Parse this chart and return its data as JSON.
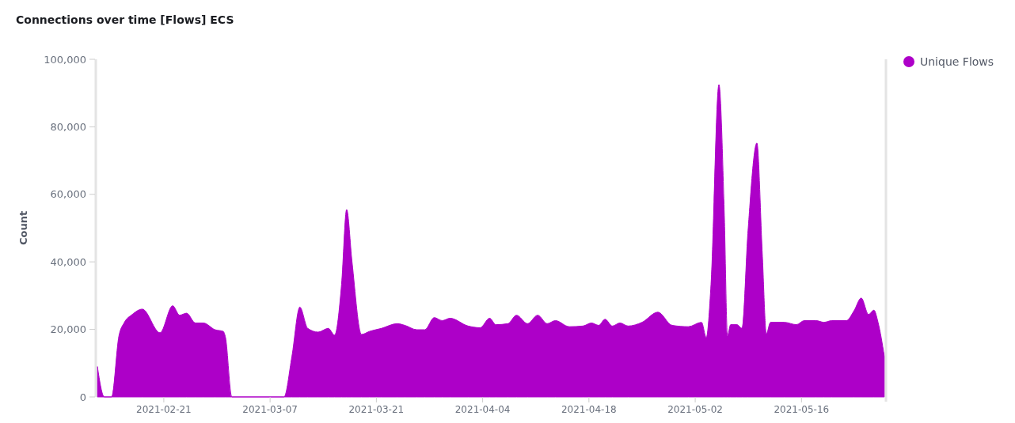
{
  "chart_data": {
    "type": "area",
    "title": "Connections over time [Flows] ECS",
    "ylabel": "Count",
    "xlim": [
      "2021-02-12T06:00",
      "2021-05-26T22:00"
    ],
    "xticks": [
      "2021-02-21",
      "2021-03-07",
      "2021-03-21",
      "2021-04-04",
      "2021-04-18",
      "2021-05-02",
      "2021-05-16"
    ],
    "ylim": [
      0,
      100000
    ],
    "yticks": [
      0,
      {
        "value": 20000,
        "label": "20,000"
      },
      {
        "value": 40000,
        "label": "40,000"
      },
      {
        "value": 60000,
        "label": "60,000"
      },
      {
        "value": 80000,
        "label": "80,000"
      },
      {
        "value": 100000,
        "label": "100,000"
      }
    ],
    "grid": false,
    "legend": "top right",
    "series": [
      {
        "name": "Unique Flows",
        "color": "#ad00c8",
        "x": [
          "2021-02-12T06:00",
          "2021-02-13T04:00",
          "2021-02-14T03:00",
          "2021-02-15T02:00",
          "2021-02-15T19:00",
          "2021-02-16T20:00",
          "2021-02-18T04:00",
          "2021-02-20T12:00",
          "2021-02-22T04:00",
          "2021-02-23T02:00",
          "2021-02-24T00:00",
          "2021-02-25T04:00",
          "2021-02-26T05:00",
          "2021-02-27T18:00",
          "2021-02-28T20:00",
          "2021-03-01T03:00",
          "2021-03-01T23:00",
          "2021-03-08T20:00",
          "2021-03-09T21:00",
          "2021-03-10T22:00",
          "2021-03-11T23:00",
          "2021-03-13T08:00",
          "2021-03-14T16:00",
          "2021-03-15T12:00",
          "2021-03-16T10:00",
          "2021-03-17T02:00",
          "2021-03-17T19:00",
          "2021-03-19T01:00",
          "2021-03-20T02:00",
          "2021-03-21T16:00",
          "2021-03-23T18:00",
          "2021-03-24T18:00",
          "2021-03-26T08:00",
          "2021-03-27T09:00",
          "2021-03-28T15:00",
          "2021-03-29T16:00",
          "2021-03-30T17:00",
          "2021-04-02T02:00",
          "2021-04-03T16:00",
          "2021-04-04T22:00",
          "2021-04-05T18:00",
          "2021-04-07T08:00",
          "2021-04-08T11:00",
          "2021-04-09T22:00",
          "2021-04-11T06:00",
          "2021-04-12T12:00",
          "2021-04-13T14:00",
          "2021-04-15T10:00",
          "2021-04-17T05:00",
          "2021-04-18T08:00",
          "2021-04-19T07:00",
          "2021-04-20T03:00",
          "2021-04-21T02:00",
          "2021-04-22T02:00",
          "2021-04-23T04:00",
          "2021-04-25T00:00",
          "2021-04-27T02:00",
          "2021-04-28T23:00",
          "2021-05-01T02:00",
          "2021-05-02T20:00",
          "2021-05-03T11:00",
          "2021-05-04T02:00",
          "2021-05-05T03:00",
          "2021-05-05T20:00",
          "2021-05-06T06:00",
          "2021-05-06T16:00",
          "2021-05-07T12:00",
          "2021-05-08T04:00",
          "2021-05-08T23:00",
          "2021-05-10T03:00",
          "2021-05-10T20:00",
          "2021-05-11T09:00",
          "2021-05-11T22:00",
          "2021-05-13T18:00",
          "2021-05-15T08:00",
          "2021-05-16T09:00",
          "2021-05-17T22:00",
          "2021-05-18T23:00",
          "2021-05-20T00:00",
          "2021-05-21T22:00",
          "2021-05-22T22:00",
          "2021-05-23T21:00",
          "2021-05-24T20:00",
          "2021-05-25T13:00",
          "2021-05-26T02:00",
          "2021-05-26T22:00"
        ],
        "values": [
          9000,
          0,
          0,
          18000,
          22000,
          24400,
          26000,
          19000,
          27000,
          24200,
          24800,
          21900,
          21900,
          19900,
          19400,
          17600,
          0,
          0,
          12000,
          26600,
          20300,
          19200,
          20300,
          18300,
          33400,
          55500,
          40000,
          18500,
          19400,
          20300,
          21700,
          21200,
          19900,
          19900,
          23500,
          22600,
          23300,
          21000,
          20500,
          23300,
          21400,
          21700,
          24200,
          21700,
          24200,
          21700,
          22600,
          20800,
          21000,
          21900,
          21200,
          23000,
          21000,
          21900,
          21000,
          22100,
          25100,
          21200,
          20800,
          22100,
          17600,
          33400,
          92500,
          53700,
          18100,
          21400,
          21400,
          20300,
          49200,
          75200,
          42400,
          18700,
          22100,
          22100,
          21400,
          22600,
          22600,
          22100,
          22600,
          22600,
          25500,
          29300,
          24400,
          25700,
          22100,
          12000
        ]
      }
    ]
  }
}
